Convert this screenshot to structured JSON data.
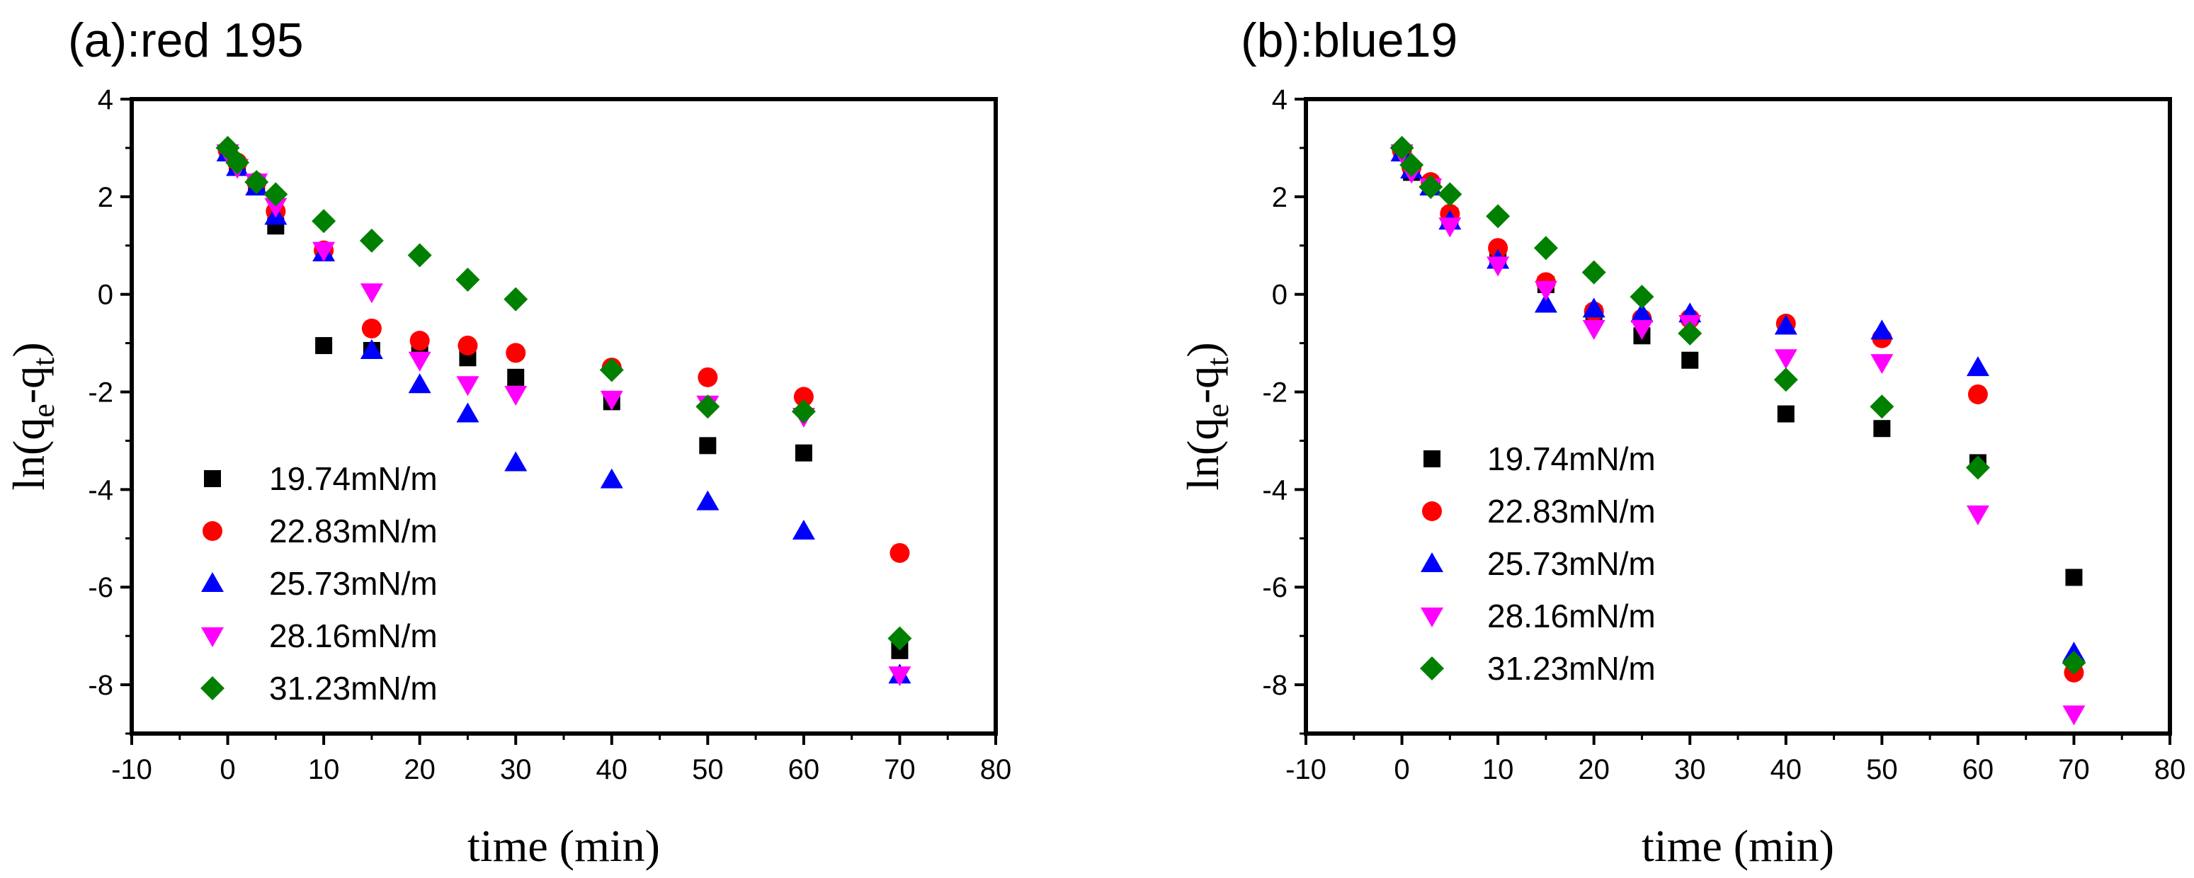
{
  "chart_data": [
    {
      "type": "scatter",
      "title": "(a):red 195",
      "xlabel": "time (min)",
      "ylabel": "ln(q_e-q_t)",
      "xlim": [
        -10,
        80
      ],
      "ylim": [
        -9,
        4
      ],
      "xticks": [
        "-10",
        "0",
        "10",
        "20",
        "30",
        "40",
        "50",
        "60",
        "70",
        "80"
      ],
      "yticks": [
        "4",
        "2",
        "0",
        "-2",
        "-4",
        "-6",
        "-8"
      ],
      "legend_position": "bottom-left",
      "series": [
        {
          "name": "19.74mN/m",
          "marker": "square",
          "color": "#000000",
          "x": [
            0,
            1,
            3,
            5,
            10,
            15,
            20,
            25,
            30,
            40,
            50,
            60,
            70
          ],
          "y": [
            2.9,
            2.6,
            2.2,
            1.4,
            -1.05,
            -1.15,
            -1.05,
            -1.3,
            -1.7,
            -2.2,
            -3.1,
            -3.25,
            -7.3
          ]
        },
        {
          "name": "22.83mN/m",
          "marker": "circle",
          "color": "#ff0000",
          "x": [
            0,
            1,
            3,
            5,
            10,
            15,
            20,
            25,
            30,
            40,
            50,
            60,
            70
          ],
          "y": [
            2.95,
            2.7,
            2.3,
            1.7,
            0.9,
            -0.7,
            -0.95,
            -1.05,
            -1.2,
            -1.5,
            -1.7,
            -2.1,
            -5.3
          ]
        },
        {
          "name": "25.73mN/m",
          "marker": "triangle-up",
          "color": "#0000ff",
          "x": [
            0,
            1,
            3,
            5,
            10,
            15,
            20,
            25,
            30,
            40,
            50,
            60,
            70
          ],
          "y": [
            2.9,
            2.6,
            2.2,
            1.6,
            0.85,
            -1.15,
            -1.85,
            -2.45,
            -3.45,
            -3.8,
            -4.25,
            -4.85,
            -7.8
          ]
        },
        {
          "name": "28.16mN/m",
          "marker": "triangle-down",
          "color": "#ff00ff",
          "x": [
            0,
            1,
            3,
            5,
            10,
            15,
            20,
            25,
            30,
            40,
            50,
            60,
            70
          ],
          "y": [
            2.9,
            2.6,
            2.3,
            1.8,
            0.9,
            0.05,
            -1.35,
            -1.85,
            -2.05,
            -2.15,
            -2.25,
            -2.5,
            -7.8
          ]
        },
        {
          "name": "31.23mN/m",
          "marker": "diamond",
          "color": "#008000",
          "x": [
            0,
            1,
            3,
            5,
            10,
            15,
            20,
            25,
            30,
            40,
            50,
            60,
            70
          ],
          "y": [
            3.0,
            2.7,
            2.3,
            2.05,
            1.5,
            1.1,
            0.8,
            0.3,
            -0.1,
            -1.55,
            -2.3,
            -2.4,
            -7.05
          ]
        }
      ]
    },
    {
      "type": "scatter",
      "title": "(b):blue19",
      "xlabel": "time (min)",
      "ylabel": "ln(q_e-q_t)",
      "xlim": [
        -10,
        80
      ],
      "ylim": [
        -9,
        4
      ],
      "xticks": [
        "-10",
        "0",
        "10",
        "20",
        "30",
        "40",
        "50",
        "60",
        "70",
        "80"
      ],
      "yticks": [
        "4",
        "2",
        "0",
        "-2",
        "-4",
        "-6",
        "-8"
      ],
      "legend_position": "bottom-left",
      "series": [
        {
          "name": "19.74mN/m",
          "marker": "square",
          "color": "#000000",
          "x": [
            0,
            1,
            3,
            5,
            10,
            15,
            20,
            25,
            30,
            40,
            50,
            60,
            70
          ],
          "y": [
            2.9,
            2.5,
            2.2,
            1.6,
            0.8,
            0.2,
            -0.4,
            -0.85,
            -1.35,
            -2.45,
            -2.75,
            -3.45,
            -5.8
          ]
        },
        {
          "name": "22.83mN/m",
          "marker": "circle",
          "color": "#ff0000",
          "x": [
            0,
            1,
            3,
            5,
            10,
            15,
            20,
            25,
            30,
            40,
            50,
            60,
            70
          ],
          "y": [
            2.95,
            2.6,
            2.3,
            1.65,
            0.95,
            0.25,
            -0.35,
            -0.5,
            -0.5,
            -0.6,
            -0.9,
            -2.05,
            -7.75
          ]
        },
        {
          "name": "25.73mN/m",
          "marker": "triangle-up",
          "color": "#0000ff",
          "x": [
            0,
            1,
            3,
            5,
            10,
            15,
            20,
            25,
            30,
            40,
            50,
            60,
            70
          ],
          "y": [
            2.9,
            2.55,
            2.2,
            1.5,
            0.7,
            -0.2,
            -0.3,
            -0.4,
            -0.4,
            -0.65,
            -0.75,
            -1.5,
            -7.35
          ]
        },
        {
          "name": "28.16mN/m",
          "marker": "triangle-down",
          "color": "#ff00ff",
          "x": [
            0,
            1,
            3,
            5,
            10,
            15,
            20,
            25,
            30,
            40,
            50,
            60,
            70
          ],
          "y": [
            2.9,
            2.5,
            2.2,
            1.4,
            0.6,
            0.1,
            -0.7,
            -0.7,
            -0.6,
            -1.3,
            -1.4,
            -4.5,
            -8.6
          ]
        },
        {
          "name": "31.23mN/m",
          "marker": "diamond",
          "color": "#008000",
          "x": [
            0,
            1,
            3,
            5,
            10,
            15,
            20,
            25,
            30,
            40,
            50,
            60,
            70
          ],
          "y": [
            3.0,
            2.65,
            2.2,
            2.05,
            1.6,
            0.95,
            0.45,
            -0.05,
            -0.8,
            -1.75,
            -2.3,
            -3.55,
            -7.55
          ]
        }
      ]
    }
  ]
}
